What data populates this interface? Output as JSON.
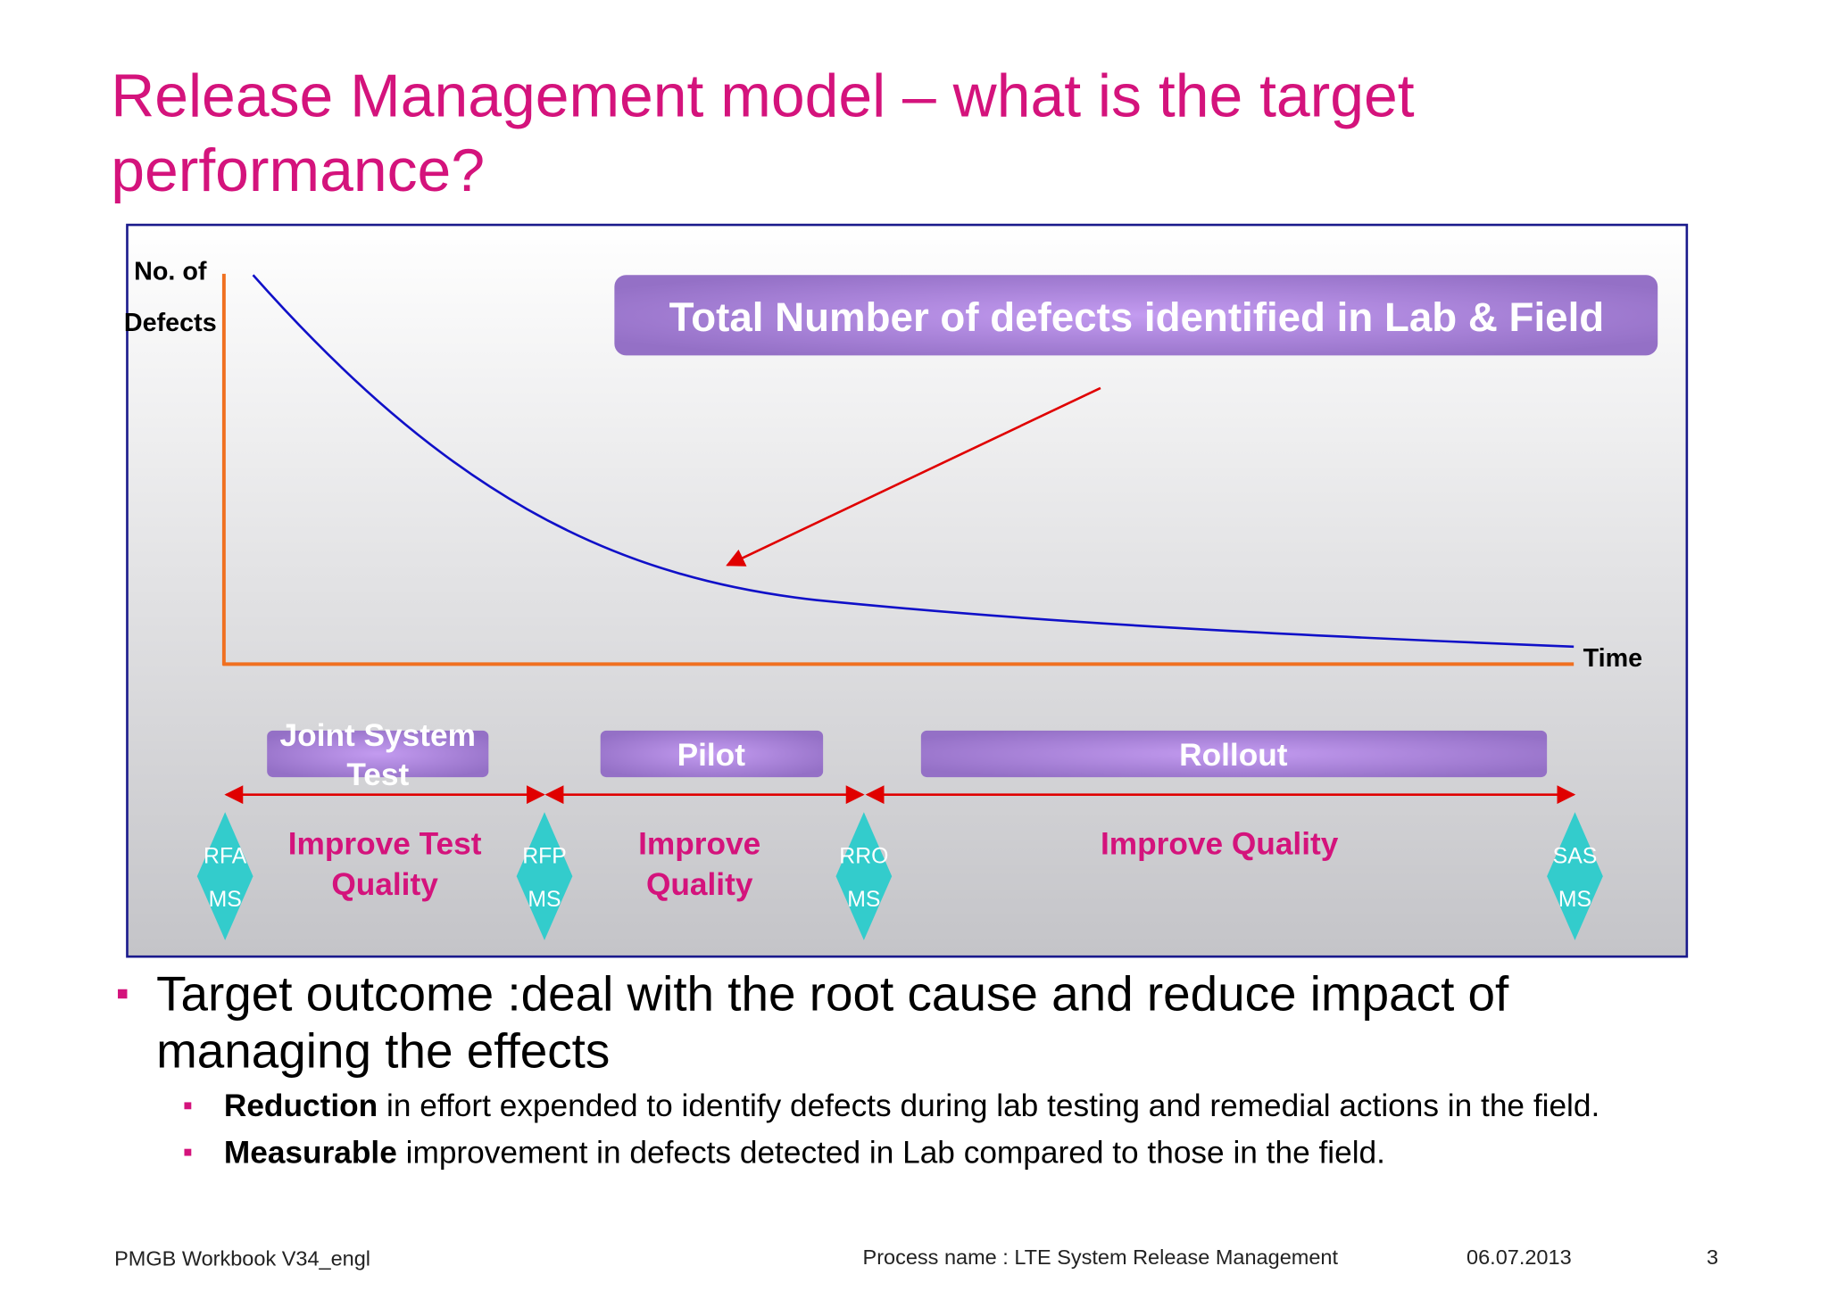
{
  "title": [
    "Release Management model – what is the target",
    "performance?"
  ],
  "diagram": {
    "y_axis_label": [
      "No. of",
      "Defects"
    ],
    "x_axis_label": "Time",
    "callout": "Total Number of defects identified in Lab & Field",
    "phases": [
      [
        "Joint System",
        "Test"
      ],
      [
        "Pilot"
      ],
      [
        "Rollout"
      ]
    ],
    "improvements": [
      [
        "Improve Test",
        "Quality"
      ],
      [
        "Improve",
        "Quality"
      ],
      [
        "Improve Quality"
      ]
    ],
    "milestones": [
      [
        "RFA",
        "MS"
      ],
      [
        "RFP",
        "MS"
      ],
      [
        "RRO",
        "MS"
      ],
      [
        "SAS",
        "MS"
      ]
    ]
  },
  "bullets": [
    {
      "text": [
        "Target outcome :deal with the root cause and reduce impact of",
        "managing the effects"
      ],
      "sub_bullets": [
        {
          "bold": "Reduction",
          "text": "in effort expended to identify defects during lab testing and remedial actions in the field."
        },
        {
          "bold": "Measurable",
          "text": "improvement in defects detected in Lab compared to those in the field."
        }
      ]
    }
  ],
  "footer": {
    "left": "PMGB Workbook V34_engl",
    "center": "Process name : LTE System Release Management",
    "date": "06.07.2013",
    "page": "3"
  }
}
